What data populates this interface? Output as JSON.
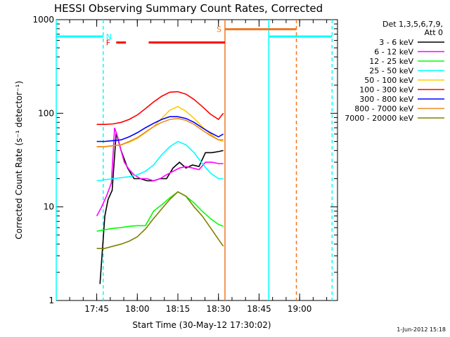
{
  "chart_data": {
    "type": "line",
    "title": "HESSI Observing Summary Count Rates, Corrected",
    "xlabel": "Start Time (30-May-12 17:30:02)",
    "ylabel": "Corrected Count Rate (s⁻¹ detector⁻¹)",
    "ylog": true,
    "xlim": [
      17.5006,
      19.2333
    ],
    "ylim": [
      1,
      1000
    ],
    "x_ticks": [
      17.75,
      18.0,
      18.25,
      18.5,
      18.75,
      19.0
    ],
    "x_tick_labels": [
      "17:45",
      "18:00",
      "18:15",
      "18:30",
      "18:45",
      "19:00"
    ],
    "y_ticks": [
      1,
      10,
      100,
      1000
    ],
    "y_tick_labels": [
      "1",
      "10",
      "100",
      "1000"
    ],
    "legend_header": [
      "Det 1,3,5,6,7,9,",
      "Att 0"
    ],
    "legend_position": "right-outside",
    "series": [
      {
        "name": "3 - 6 keV",
        "color": "#000000",
        "x": [
          17.77,
          17.8,
          17.82,
          17.845,
          17.87,
          17.9,
          17.94,
          17.98,
          18.02,
          18.06,
          18.1,
          18.14,
          18.18,
          18.22,
          18.26,
          18.3,
          18.34,
          18.38,
          18.42,
          18.46,
          18.5,
          18.53
        ],
        "y": [
          1.5,
          8,
          12,
          15,
          62,
          40,
          26,
          20,
          20,
          19,
          19,
          20,
          20,
          26,
          30,
          26,
          28,
          27,
          38,
          38,
          39,
          40
        ]
      },
      {
        "name": "6 - 12 keV",
        "color": "#ff00ff",
        "x": [
          17.75,
          17.78,
          17.81,
          17.84,
          17.86,
          17.88,
          17.9,
          17.92,
          17.95,
          17.98,
          18.02,
          18.06,
          18.1,
          18.14,
          18.18,
          18.22,
          18.26,
          18.3,
          18.34,
          18.38,
          18.42,
          18.46,
          18.5,
          18.53
        ],
        "y": [
          8,
          10,
          13,
          18,
          70,
          55,
          40,
          30,
          25,
          22,
          20,
          20,
          19,
          20,
          22,
          24,
          26,
          27,
          26,
          25,
          30,
          30,
          29,
          29
        ]
      },
      {
        "name": "12 - 25 keV",
        "color": "#00ff00",
        "x": [
          17.75,
          17.8,
          17.85,
          17.9,
          17.95,
          18.0,
          18.05,
          18.1,
          18.15,
          18.2,
          18.25,
          18.3,
          18.35,
          18.4,
          18.45,
          18.5,
          18.53
        ],
        "y": [
          5.5,
          5.7,
          5.9,
          6,
          6.2,
          6.3,
          6.3,
          9,
          10.5,
          12.5,
          14.5,
          13,
          11,
          9,
          7.5,
          6.5,
          6.2
        ]
      },
      {
        "name": "25 - 50 keV",
        "color": "#00ffff",
        "x": [
          17.75,
          17.8,
          17.85,
          17.9,
          17.95,
          18.0,
          18.05,
          18.1,
          18.15,
          18.2,
          18.25,
          18.3,
          18.35,
          18.4,
          18.45,
          18.5,
          18.53
        ],
        "y": [
          19,
          19.5,
          20,
          20.5,
          21,
          22,
          24,
          28,
          36,
          44,
          50,
          46,
          38,
          29,
          23,
          20,
          20
        ]
      },
      {
        "name": "50 - 100 keV",
        "color": "#ffcc00",
        "x": [
          17.75,
          17.8,
          17.85,
          17.9,
          17.95,
          18.0,
          18.05,
          18.1,
          18.15,
          18.2,
          18.25,
          18.3,
          18.35,
          18.4,
          18.45,
          18.5,
          18.53
        ],
        "y": [
          44,
          44,
          45,
          46,
          49,
          54,
          62,
          72,
          88,
          108,
          118,
          105,
          88,
          72,
          60,
          52,
          50
        ]
      },
      {
        "name": "100 - 300 keV",
        "color": "#ff0000",
        "x": [
          17.75,
          17.8,
          17.85,
          17.9,
          17.95,
          18.0,
          18.05,
          18.1,
          18.15,
          18.2,
          18.25,
          18.3,
          18.35,
          18.4,
          18.45,
          18.5,
          18.53
        ],
        "y": [
          76,
          76,
          77,
          80,
          86,
          96,
          112,
          132,
          152,
          168,
          170,
          160,
          140,
          118,
          98,
          86,
          100
        ]
      },
      {
        "name": "300 - 800 keV",
        "color": "#0000ff",
        "x": [
          17.75,
          17.8,
          17.85,
          17.9,
          17.95,
          18.0,
          18.05,
          18.1,
          18.15,
          18.2,
          18.25,
          18.3,
          18.35,
          18.4,
          18.45,
          18.5,
          18.53
        ],
        "y": [
          50,
          50,
          51,
          52,
          56,
          62,
          70,
          78,
          86,
          92,
          92,
          88,
          80,
          70,
          62,
          56,
          60
        ]
      },
      {
        "name": "800 - 7000 keV",
        "color": "#ee8822",
        "x": [
          17.75,
          17.8,
          17.85,
          17.9,
          17.95,
          18.0,
          18.05,
          18.1,
          18.15,
          18.2,
          18.25,
          18.3,
          18.35,
          18.4,
          18.45,
          18.5,
          18.53
        ],
        "y": [
          44,
          44,
          45,
          46,
          50,
          55,
          63,
          72,
          80,
          86,
          88,
          84,
          76,
          66,
          58,
          52,
          52
        ]
      },
      {
        "name": "7000 - 20000 keV",
        "color": "#808000",
        "x": [
          17.75,
          17.8,
          17.85,
          17.9,
          17.95,
          18.0,
          18.05,
          18.1,
          18.15,
          18.2,
          18.25,
          18.3,
          18.35,
          18.4,
          18.45,
          18.5,
          18.53
        ],
        "y": [
          3.6,
          3.6,
          3.8,
          4,
          4.3,
          4.8,
          5.8,
          7.5,
          9.5,
          12,
          14.5,
          13,
          10,
          8,
          6,
          4.5,
          3.8
        ]
      }
    ],
    "flag_segments": [
      {
        "label": "N",
        "color": "#00ffff",
        "segments": [
          [
            17.5006,
            17.79
          ],
          [
            18.81,
            19.2
          ]
        ],
        "y": 660
      },
      {
        "label": "F",
        "color": "#ff0000",
        "segments": [
          [
            17.87,
            17.93
          ],
          [
            18.07,
            18.54
          ]
        ],
        "y": 570
      },
      {
        "label": "S",
        "color": "#ee7722",
        "segments": [
          [
            18.54,
            18.98
          ]
        ],
        "y": 790
      }
    ],
    "vertical_lines": [
      {
        "x": 17.5006,
        "color": "#00ffff",
        "style": "solid"
      },
      {
        "x": 17.79,
        "color": "#00ffff",
        "style": "dashed"
      },
      {
        "x": 18.54,
        "color": "#ee7722",
        "style": "solid"
      },
      {
        "x": 18.81,
        "color": "#00ffff",
        "style": "solid"
      },
      {
        "x": 18.98,
        "color": "#ee7722",
        "style": "dashed"
      },
      {
        "x": 19.2,
        "color": "#00ffff",
        "style": "dashed"
      }
    ],
    "footer": "1-Jun-2012 15:18"
  }
}
